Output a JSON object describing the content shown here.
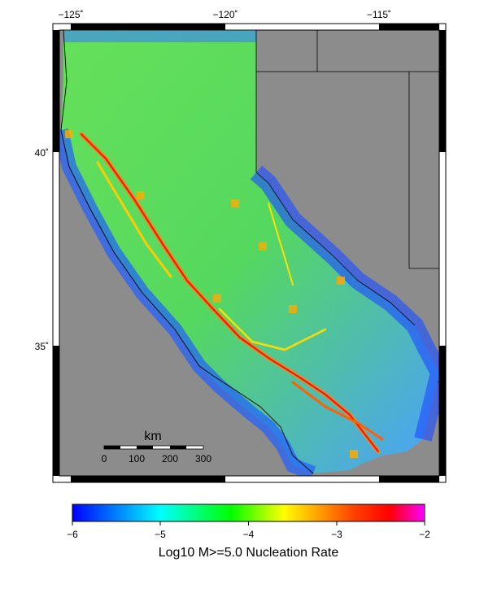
{
  "map": {
    "lon_ticks": [
      "−125˚",
      "−120˚",
      "−115˚"
    ],
    "lat_ticks": [
      "40˚",
      "35˚"
    ],
    "land_color": "#8c8c8c",
    "background_color": "#ffffff"
  },
  "scalebar": {
    "unit": "km",
    "labels": [
      "0",
      "100",
      "200",
      "300"
    ]
  },
  "colorbar": {
    "label": "Log10 M>=5.0 Nucleation Rate",
    "tick_labels": [
      "−6",
      "−5",
      "−4",
      "−3",
      "−2"
    ],
    "range": [
      -6,
      -2
    ],
    "colors": [
      "#0000ff",
      "#00ffff",
      "#00ff00",
      "#ffff00",
      "#ff0000",
      "#ff00ff"
    ]
  }
}
